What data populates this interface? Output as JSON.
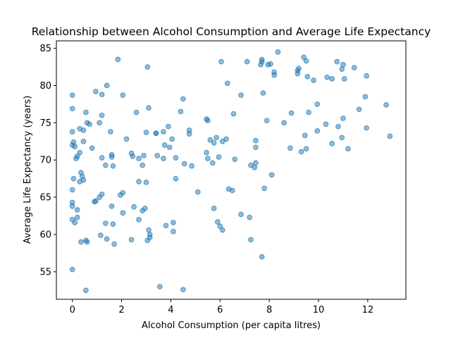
{
  "chart_data": {
    "type": "scatter",
    "title": "Relationship between Alcohol Consumption and Average Life Expectancy",
    "xlabel": "Alcohol Consumption (per capita litres)",
    "ylabel": "Average Life Expectancy (years)",
    "xlim": [
      -0.65,
      13.55
    ],
    "ylim": [
      51.3,
      86.0
    ],
    "xticks": [
      0,
      2,
      4,
      6,
      8,
      10,
      12
    ],
    "yticks": [
      55,
      60,
      65,
      70,
      75,
      80,
      85
    ],
    "grid": false,
    "color": "#1f77b4",
    "points": [
      [
        0.0,
        78.7
      ],
      [
        0.0,
        76.9
      ],
      [
        0.0,
        73.8
      ],
      [
        0.05,
        72.4
      ],
      [
        0.0,
        72.0
      ],
      [
        0.1,
        71.8
      ],
      [
        0.15,
        70.2
      ],
      [
        0.2,
        70.5
      ],
      [
        0.3,
        71.0
      ],
      [
        0.3,
        74.2
      ],
      [
        0.45,
        74.0
      ],
      [
        0.45,
        72.5
      ],
      [
        0.6,
        75.0
      ],
      [
        0.55,
        76.4
      ],
      [
        0.7,
        74.8
      ],
      [
        0.8,
        71.6
      ],
      [
        0.35,
        68.3
      ],
      [
        0.4,
        67.8
      ],
      [
        0.45,
        67.3
      ],
      [
        0.3,
        67.1
      ],
      [
        0.05,
        67.5
      ],
      [
        0.0,
        66.0
      ],
      [
        0.0,
        64.3
      ],
      [
        0.0,
        63.8
      ],
      [
        0.2,
        63.3
      ],
      [
        0.2,
        62.3
      ],
      [
        0.0,
        62.0
      ],
      [
        0.1,
        61.6
      ],
      [
        0.35,
        59.0
      ],
      [
        0.55,
        59.2
      ],
      [
        0.6,
        59.0
      ],
      [
        0.0,
        55.3
      ],
      [
        0.55,
        52.5
      ],
      [
        0.9,
        64.4
      ],
      [
        0.95,
        64.5
      ],
      [
        0.95,
        79.2
      ],
      [
        1.1,
        75.0
      ],
      [
        1.2,
        76.0
      ],
      [
        1.2,
        78.8
      ],
      [
        1.4,
        80.0
      ],
      [
        1.2,
        70.3
      ],
      [
        1.35,
        69.3
      ],
      [
        1.6,
        70.4
      ],
      [
        1.6,
        70.7
      ],
      [
        1.65,
        69.2
      ],
      [
        1.55,
        73.8
      ],
      [
        1.1,
        65.0
      ],
      [
        1.2,
        65.4
      ],
      [
        1.6,
        63.8
      ],
      [
        1.15,
        59.9
      ],
      [
        1.35,
        61.5
      ],
      [
        1.4,
        59.4
      ],
      [
        1.65,
        61.4
      ],
      [
        1.7,
        58.7
      ],
      [
        1.85,
        83.5
      ],
      [
        1.95,
        65.3
      ],
      [
        2.05,
        65.6
      ],
      [
        2.05,
        62.9
      ],
      [
        2.05,
        78.7
      ],
      [
        2.2,
        72.8
      ],
      [
        2.4,
        70.9
      ],
      [
        2.45,
        70.5
      ],
      [
        2.6,
        76.4
      ],
      [
        2.7,
        70.2
      ],
      [
        2.85,
        69.3
      ],
      [
        2.9,
        70.6
      ],
      [
        2.7,
        67.1
      ],
      [
        2.5,
        63.7
      ],
      [
        2.7,
        62.0
      ],
      [
        2.4,
        59.3
      ],
      [
        2.85,
        63.2
      ],
      [
        2.95,
        63.5
      ],
      [
        3.0,
        73.7
      ],
      [
        3.1,
        77.0
      ],
      [
        3.05,
        82.5
      ],
      [
        3.0,
        67.0
      ],
      [
        3.1,
        60.6
      ],
      [
        3.15,
        60.0
      ],
      [
        3.15,
        59.6
      ],
      [
        3.05,
        59.2
      ],
      [
        3.4,
        73.6
      ],
      [
        3.4,
        73.6
      ],
      [
        3.7,
        73.8
      ],
      [
        3.75,
        72.0
      ],
      [
        3.9,
        74.5
      ],
      [
        3.95,
        71.7
      ],
      [
        4.05,
        72.8
      ],
      [
        3.7,
        70.2
      ],
      [
        3.45,
        70.6
      ],
      [
        3.8,
        61.2
      ],
      [
        4.1,
        61.6
      ],
      [
        4.1,
        60.4
      ],
      [
        4.2,
        67.5
      ],
      [
        4.2,
        70.3
      ],
      [
        4.4,
        76.5
      ],
      [
        4.5,
        78.2
      ],
      [
        4.55,
        69.5
      ],
      [
        4.85,
        69.2
      ],
      [
        4.75,
        73.5
      ],
      [
        4.75,
        74.0
      ],
      [
        3.55,
        53.0
      ],
      [
        4.5,
        52.6
      ],
      [
        5.1,
        65.7
      ],
      [
        5.45,
        75.5
      ],
      [
        5.5,
        75.3
      ],
      [
        5.45,
        71.0
      ],
      [
        5.5,
        70.2
      ],
      [
        5.6,
        72.7
      ],
      [
        5.75,
        72.3
      ],
      [
        5.85,
        73.0
      ],
      [
        5.95,
        70.4
      ],
      [
        5.7,
        69.6
      ],
      [
        5.75,
        63.5
      ],
      [
        5.9,
        61.7
      ],
      [
        6.0,
        61.1
      ],
      [
        6.1,
        60.6
      ],
      [
        6.1,
        72.5
      ],
      [
        6.25,
        72.8
      ],
      [
        6.3,
        80.3
      ],
      [
        6.35,
        66.1
      ],
      [
        6.5,
        65.9
      ],
      [
        6.6,
        70.1
      ],
      [
        6.55,
        76.2
      ],
      [
        6.05,
        83.2
      ],
      [
        6.85,
        78.7
      ],
      [
        6.85,
        62.7
      ],
      [
        7.1,
        83.2
      ],
      [
        7.2,
        62.3
      ],
      [
        7.25,
        59.3
      ],
      [
        7.25,
        69.3
      ],
      [
        7.45,
        69.6
      ],
      [
        7.45,
        71.7
      ],
      [
        7.45,
        72.6
      ],
      [
        7.4,
        69.0
      ],
      [
        7.65,
        82.8
      ],
      [
        7.7,
        83.2
      ],
      [
        7.7,
        83.5
      ],
      [
        7.75,
        79.0
      ],
      [
        7.8,
        66.2
      ],
      [
        7.7,
        57.0
      ],
      [
        7.95,
        82.8
      ],
      [
        8.05,
        82.9
      ],
      [
        8.2,
        81.8
      ],
      [
        8.2,
        81.4
      ],
      [
        8.35,
        84.5
      ],
      [
        7.9,
        75.3
      ],
      [
        8.1,
        68.0
      ],
      [
        8.6,
        75.0
      ],
      [
        8.85,
        71.6
      ],
      [
        8.9,
        76.3
      ],
      [
        9.15,
        81.6
      ],
      [
        9.15,
        82.0
      ],
      [
        9.2,
        82.3
      ],
      [
        9.4,
        83.8
      ],
      [
        9.5,
        83.3
      ],
      [
        9.55,
        81.2
      ],
      [
        9.8,
        80.7
      ],
      [
        9.45,
        73.3
      ],
      [
        9.5,
        71.5
      ],
      [
        9.3,
        71.1
      ],
      [
        9.6,
        76.4
      ],
      [
        9.95,
        77.5
      ],
      [
        9.95,
        73.9
      ],
      [
        10.3,
        74.8
      ],
      [
        10.35,
        81.1
      ],
      [
        10.55,
        80.9
      ],
      [
        10.55,
        72.2
      ],
      [
        10.75,
        83.2
      ],
      [
        10.8,
        74.5
      ],
      [
        10.95,
        82.2
      ],
      [
        11.0,
        82.8
      ],
      [
        11.0,
        75.6
      ],
      [
        11.05,
        80.9
      ],
      [
        10.95,
        73.0
      ],
      [
        11.2,
        71.5
      ],
      [
        11.45,
        82.4
      ],
      [
        11.65,
        76.8
      ],
      [
        11.9,
        78.5
      ],
      [
        11.95,
        81.3
      ],
      [
        11.95,
        74.3
      ],
      [
        12.75,
        77.4
      ],
      [
        12.9,
        73.2
      ]
    ]
  }
}
